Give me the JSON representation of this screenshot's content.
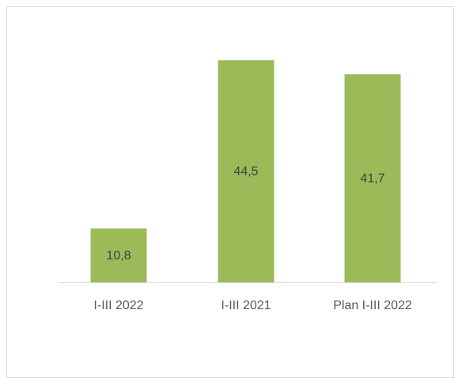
{
  "chart_data": {
    "type": "bar",
    "categories": [
      "I-III 2022",
      "I-III 2021",
      "Plan I-III 2022"
    ],
    "values": [
      10.8,
      44.5,
      41.7
    ],
    "data_labels": [
      "10,8",
      "44,5",
      "41,7"
    ],
    "title": "",
    "xlabel": "",
    "ylabel": "",
    "ylim": [
      0,
      50
    ],
    "grid": false,
    "legend": "none",
    "bar_color": "#9bbb59",
    "axis_color": "#d9d9d9"
  }
}
